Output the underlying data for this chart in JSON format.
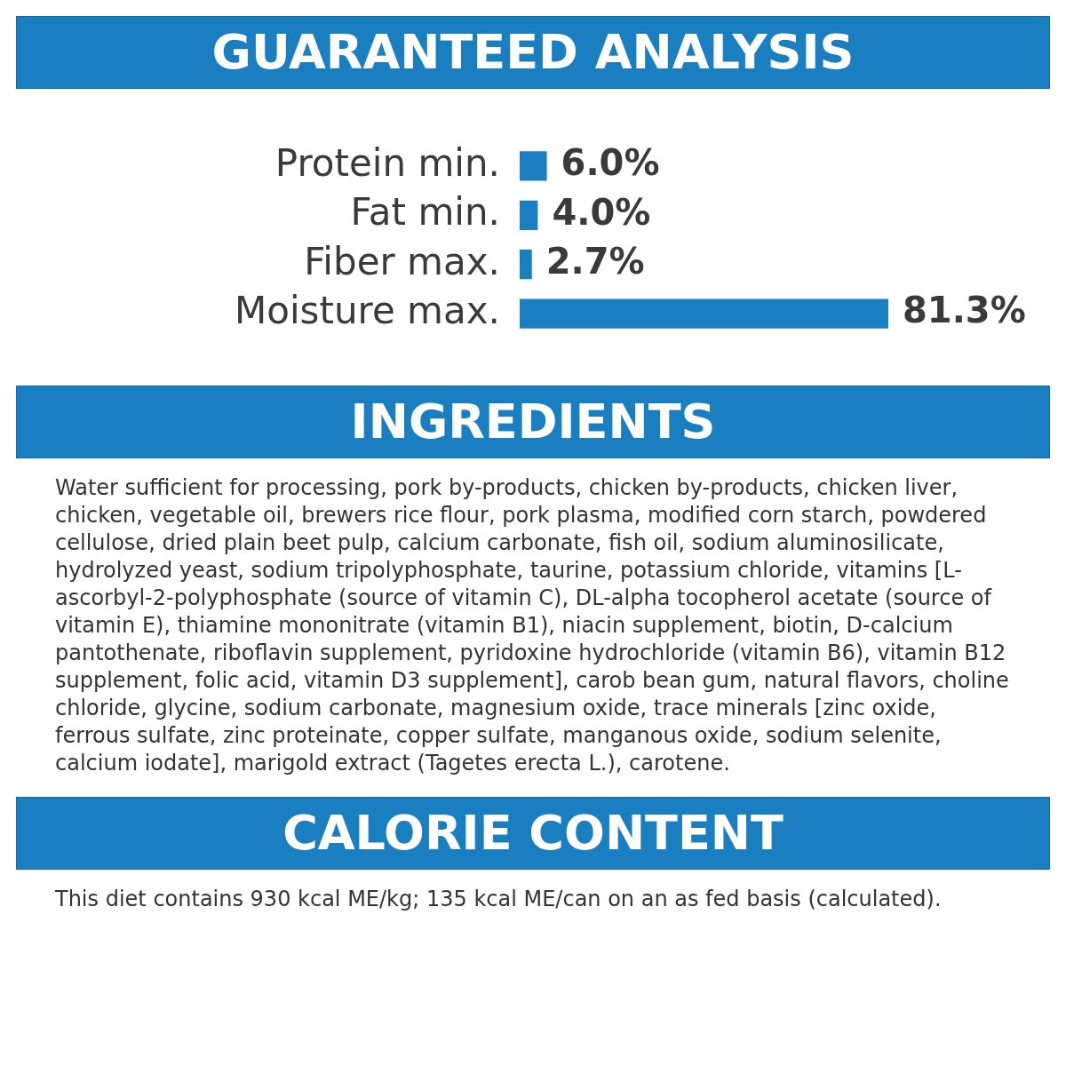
{
  "chart_data": {
    "type": "bar",
    "orientation": "horizontal",
    "title": "GUARANTEED ANALYSIS",
    "categories": [
      "Protein min.",
      "Fat min.",
      "Fiber max.",
      "Moisture max."
    ],
    "values": [
      6.0,
      4.0,
      2.7,
      81.3
    ],
    "value_labels": [
      "6.0%",
      "4.0%",
      "2.7%",
      "81.3%"
    ],
    "color": "#1a7fc1",
    "tick_labels": "y",
    "grid": false,
    "legend": false,
    "annotations": [
      "INGREDIENTS",
      "Water sufficient for processing, pork by-products, chicken by-products, chicken liver, chicken, vegetable oil, brewers rice flour, pork plasma, modified corn starch, powdered cellulose, dried plain beet pulp, calcium carbonate, fish oil, sodium aluminosilicate, hydrolyzed yeast, sodium tripolyphosphate, taurine, potassium chloride, vitamins [L-ascorbyl-2-polyphosphate (source of vitamin C), DL-alpha tocopherol acetate (source of vitamin E), thiamine mononitrate (vitamin B1), niacin supplement, biotin, D-calcium pantothenate, riboflavin supplement, pyridoxine hydrochloride (vitamin B6), vitamin B12 supplement, folic acid, vitamin D3 supplement], carob bean gum, natural flavors, choline chloride, glycine, sodium carbonate, magnesium oxide, trace minerals [zinc oxide, ferrous sulfate, zinc proteinate, copper sulfate, manganous oxide, sodium selenite, calcium iodate], marigold extract (Tagetes erecta L.), carotene.",
      "CALORIE CONTENT",
      "This diet contains 930 kcal ME/kg; 135 kcal ME/can on an as fed basis (calculated)."
    ]
  }
}
